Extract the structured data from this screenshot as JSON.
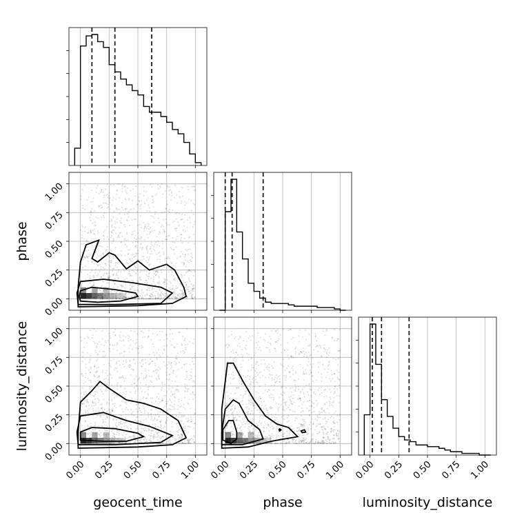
{
  "chart_data": {
    "type": "corner",
    "parameters": [
      "geocent_time",
      "phase",
      "luminosity_distance"
    ],
    "axis_labels": {
      "geocent_time": "geocent_time",
      "phase": "phase",
      "luminosity_distance": "luminosity_distance"
    },
    "axis_range": [
      -0.1,
      1.1
    ],
    "ticks": [
      0.0,
      0.25,
      0.5,
      0.75,
      1.0
    ],
    "tick_labels": [
      "0.00",
      "0.25",
      "0.50",
      "0.75",
      "1.00"
    ],
    "grid": true,
    "histograms": {
      "geocent_time": {
        "bin_edges": [
          -0.05,
          0.0,
          0.05,
          0.1,
          0.15,
          0.2,
          0.25,
          0.3,
          0.35,
          0.4,
          0.45,
          0.5,
          0.55,
          0.6,
          0.65,
          0.7,
          0.75,
          0.8,
          0.85,
          0.9,
          0.95,
          1.0,
          1.05
        ],
        "counts": [
          0.12,
          0.83,
          0.9,
          0.91,
          0.86,
          0.82,
          0.7,
          0.65,
          0.6,
          0.56,
          0.52,
          0.49,
          0.41,
          0.37,
          0.37,
          0.34,
          0.3,
          0.25,
          0.22,
          0.16,
          0.08,
          0.02
        ],
        "quantiles": [
          0.1,
          0.3,
          0.62
        ]
      },
      "phase": {
        "bin_edges": [
          -0.05,
          0.0,
          0.05,
          0.1,
          0.15,
          0.2,
          0.25,
          0.3,
          0.35,
          0.4,
          0.45,
          0.5,
          0.55,
          0.6,
          0.65,
          0.7,
          0.75,
          0.8,
          0.85,
          0.9,
          0.95,
          1.0,
          1.05
        ],
        "counts": [
          0.0,
          0.73,
          0.97,
          0.58,
          0.38,
          0.2,
          0.14,
          0.09,
          0.06,
          0.05,
          0.05,
          0.05,
          0.04,
          0.03,
          0.03,
          0.03,
          0.03,
          0.02,
          0.02,
          0.02,
          0.01,
          0.0
        ],
        "quantiles": [
          0.0,
          0.06,
          0.33
        ]
      },
      "luminosity_distance": {
        "bin_edges": [
          -0.05,
          0.0,
          0.05,
          0.1,
          0.15,
          0.2,
          0.25,
          0.3,
          0.35,
          0.4,
          0.45,
          0.5,
          0.55,
          0.6,
          0.65,
          0.7,
          0.75,
          0.8,
          0.85,
          0.9,
          0.95,
          1.0,
          1.05
        ],
        "counts": [
          0.24,
          0.78,
          0.54,
          0.33,
          0.23,
          0.16,
          0.11,
          0.09,
          0.08,
          0.06,
          0.06,
          0.05,
          0.05,
          0.04,
          0.03,
          0.02,
          0.02,
          0.01,
          0.01,
          0.01,
          0.0,
          0.0
        ],
        "quantiles": [
          0.02,
          0.1,
          0.34
        ]
      }
    },
    "scatter_2d": {
      "geocent_time__phase": {
        "x_param": "geocent_time",
        "y_param": "phase",
        "contours": [
          [
            [
              0.0,
              -0.02
            ],
            [
              0.15,
              -0.03
            ],
            [
              0.35,
              -0.02
            ],
            [
              0.5,
              0.02
            ],
            [
              0.48,
              0.05
            ],
            [
              0.3,
              0.08
            ],
            [
              0.1,
              0.1
            ],
            [
              0.0,
              0.07
            ],
            [
              -0.01,
              0.02
            ]
          ],
          [
            [
              -0.02,
              -0.05
            ],
            [
              0.3,
              -0.05
            ],
            [
              0.7,
              -0.04
            ],
            [
              0.8,
              0.05
            ],
            [
              0.7,
              0.1
            ],
            [
              0.45,
              0.14
            ],
            [
              0.2,
              0.17
            ],
            [
              0.0,
              0.15
            ],
            [
              -0.03,
              0.05
            ]
          ],
          [
            [
              -0.02,
              -0.07
            ],
            [
              0.5,
              -0.06
            ],
            [
              0.8,
              -0.04
            ],
            [
              0.92,
              0.02
            ],
            [
              0.9,
              0.1
            ],
            [
              0.82,
              0.25
            ],
            [
              0.75,
              0.3
            ],
            [
              0.6,
              0.25
            ],
            [
              0.5,
              0.33
            ],
            [
              0.4,
              0.26
            ],
            [
              0.3,
              0.38
            ],
            [
              0.25,
              0.4
            ],
            [
              0.15,
              0.32
            ],
            [
              0.1,
              0.35
            ],
            [
              0.16,
              0.51
            ],
            [
              0.05,
              0.47
            ],
            [
              0.0,
              0.32
            ],
            [
              -0.02,
              0.1
            ]
          ]
        ]
      },
      "geocent_time__luminosity_distance": {
        "x_param": "geocent_time",
        "y_param": "luminosity_distance",
        "contours": [
          [
            [
              0.0,
              0.03
            ],
            [
              0.2,
              0.02
            ],
            [
              0.4,
              0.02
            ],
            [
              0.55,
              0.06
            ],
            [
              0.5,
              0.09
            ],
            [
              0.3,
              0.13
            ],
            [
              0.1,
              0.14
            ],
            [
              0.0,
              0.1
            ]
          ],
          [
            [
              -0.02,
              -0.01
            ],
            [
              0.3,
              -0.01
            ],
            [
              0.7,
              0.01
            ],
            [
              0.8,
              0.07
            ],
            [
              0.6,
              0.15
            ],
            [
              0.4,
              0.2
            ],
            [
              0.2,
              0.27
            ],
            [
              0.0,
              0.24
            ],
            [
              -0.03,
              0.1
            ]
          ],
          [
            [
              -0.02,
              -0.04
            ],
            [
              0.5,
              -0.03
            ],
            [
              0.8,
              -0.01
            ],
            [
              0.92,
              0.05
            ],
            [
              0.85,
              0.2
            ],
            [
              0.7,
              0.3
            ],
            [
              0.55,
              0.35
            ],
            [
              0.4,
              0.38
            ],
            [
              0.25,
              0.48
            ],
            [
              0.17,
              0.54
            ],
            [
              0.1,
              0.46
            ],
            [
              0.0,
              0.36
            ],
            [
              -0.02,
              0.1
            ]
          ]
        ]
      },
      "phase__luminosity_distance": {
        "x_param": "phase",
        "y_param": "luminosity_distance",
        "contours": [
          [
            [
              -0.02,
              0.03
            ],
            [
              0.05,
              0.0
            ],
            [
              0.1,
              0.04
            ],
            [
              0.1,
              0.1
            ],
            [
              0.07,
              0.2
            ],
            [
              0.03,
              0.2
            ],
            [
              -0.02,
              0.12
            ]
          ],
          [
            [
              -0.03,
              -0.01
            ],
            [
              0.15,
              -0.01
            ],
            [
              0.33,
              0.04
            ],
            [
              0.3,
              0.12
            ],
            [
              0.2,
              0.2
            ],
            [
              0.12,
              0.35
            ],
            [
              0.07,
              0.38
            ],
            [
              0.0,
              0.3
            ],
            [
              -0.03,
              0.1
            ]
          ],
          [
            [
              -0.03,
              -0.04
            ],
            [
              0.2,
              -0.03
            ],
            [
              0.4,
              0.02
            ],
            [
              0.63,
              0.06
            ],
            [
              0.55,
              0.14
            ],
            [
              0.45,
              0.17
            ],
            [
              0.35,
              0.24
            ],
            [
              0.25,
              0.38
            ],
            [
              0.15,
              0.55
            ],
            [
              0.07,
              0.7
            ],
            [
              0.02,
              0.7
            ],
            [
              -0.03,
              0.3
            ]
          ],
          [
            [
              0.67,
              0.095
            ],
            [
              0.7,
              0.1
            ],
            [
              0.69,
              0.12
            ],
            [
              0.66,
              0.11
            ]
          ],
          [
            [
              0.475,
              0.11
            ],
            [
              0.485,
              0.12
            ],
            [
              0.475,
              0.128
            ],
            [
              0.468,
              0.12
            ]
          ]
        ]
      }
    }
  }
}
